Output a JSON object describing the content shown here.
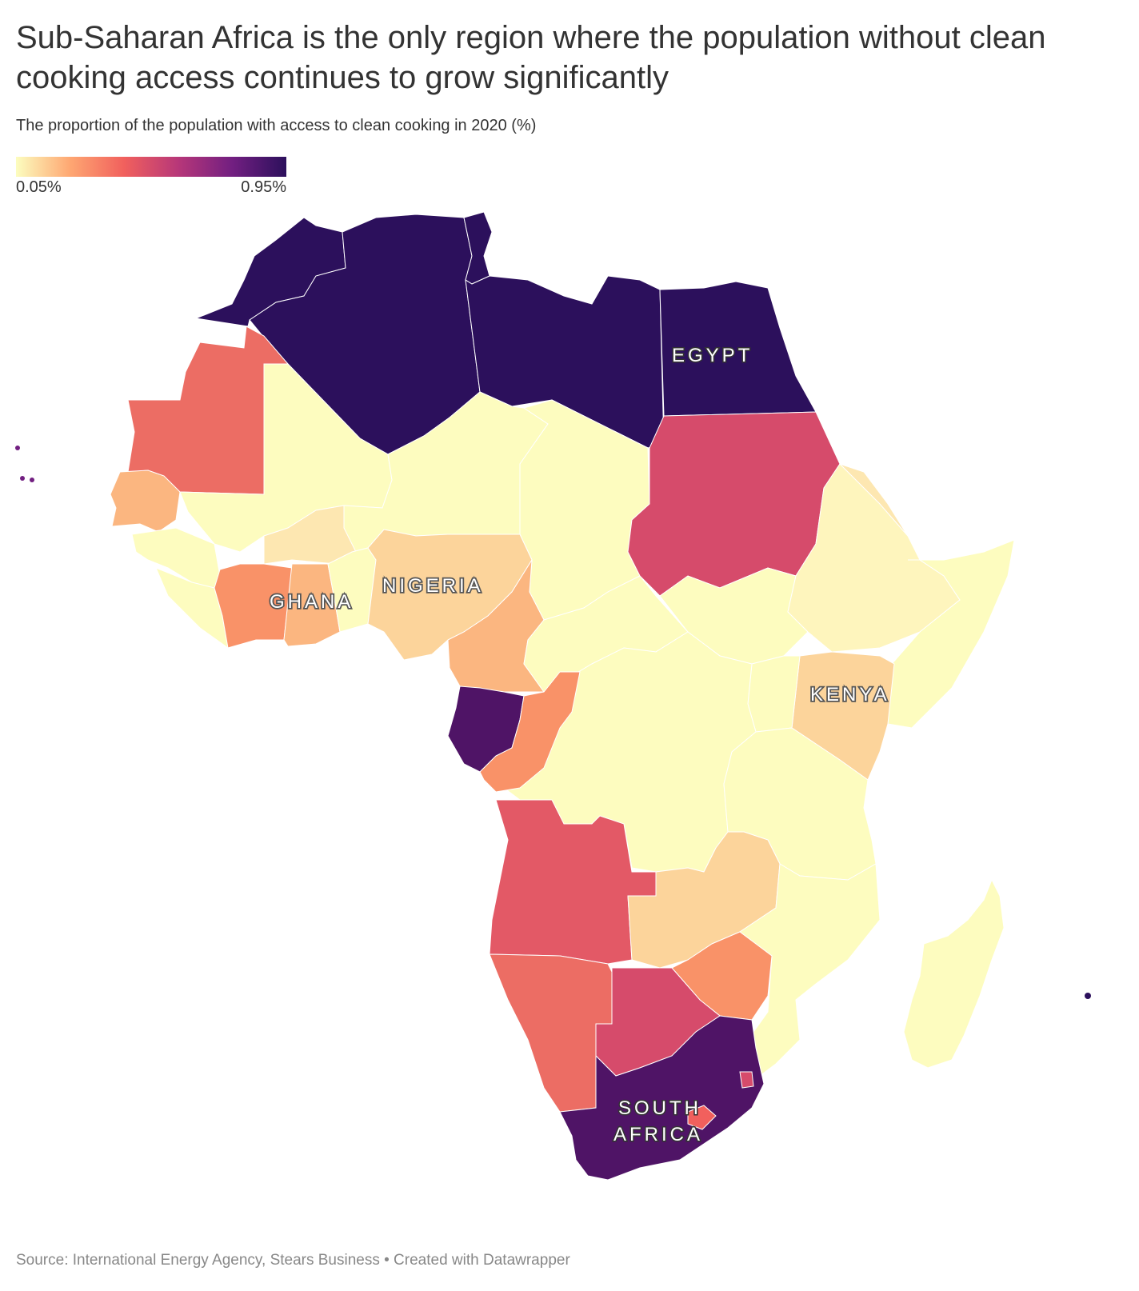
{
  "header": {
    "title": "Sub-Saharan Africa is the only region where the population without clean cooking access continues to grow significantly",
    "subtitle": "The proportion of the population with access to clean cooking in 2020 (%)"
  },
  "legend": {
    "min_label": "0.05%",
    "max_label": "0.95%",
    "colors": [
      "#fcfdbf",
      "#fea772",
      "#f1605d",
      "#b73779",
      "#721f81",
      "#2c105c"
    ]
  },
  "labels": {
    "egypt": "EGYPT",
    "nigeria": "NIGERIA",
    "ghana": "GHANA",
    "kenya": "KENYA",
    "south_africa_1": "SOUTH",
    "south_africa_2": "AFRICA"
  },
  "footer": {
    "source": "Source: International Energy Agency, Stears Business • Created with Datawrapper"
  },
  "colors": {
    "darkest": "#2c105c",
    "dark_purple": "#4f1466",
    "crimson": "#d64b6b",
    "red": "#e35966",
    "salmon": "#ec6d64",
    "orange": "#f99268",
    "light_orange": "#fbb680",
    "peach": "#fcd49b",
    "light_peach": "#fde7b1",
    "pale_yellow": "#fef5bd",
    "lightest": "#fdfcbf"
  }
}
